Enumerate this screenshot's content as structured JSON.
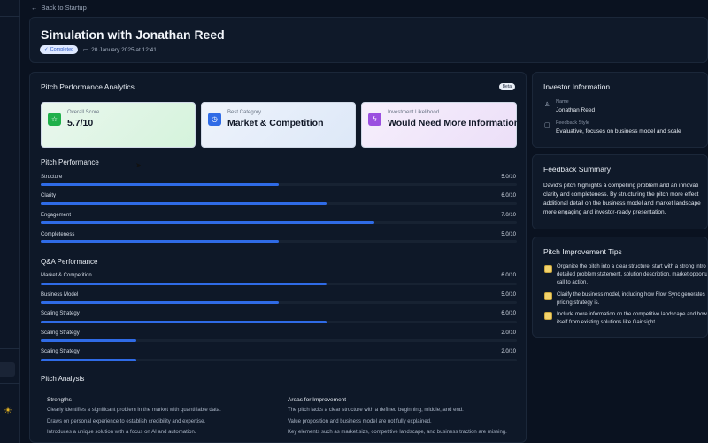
{
  "nav": {
    "back_label": "Back to Startup"
  },
  "header": {
    "title": "Simulation with Jonathan Reed",
    "status": "Completed",
    "date": "20 January 2025 at 12:41"
  },
  "analytics": {
    "title": "Pitch Performance Analytics",
    "badge": "Beta",
    "stats": [
      {
        "label": "Overall Score",
        "value": "5.7/10",
        "icon": "star-icon",
        "color": "#1fb04a"
      },
      {
        "label": "Best Category",
        "value": "Market & Competition",
        "icon": "clock-icon",
        "color": "#2f6be6"
      },
      {
        "label": "Investment Likelihood",
        "value": "Would Need More Information",
        "icon": "bolt-icon",
        "color": "#9b4fe0"
      }
    ],
    "pitch_performance": {
      "title": "Pitch Performance",
      "items": [
        {
          "label": "Structure",
          "score": "5.0/10",
          "value": 5.0
        },
        {
          "label": "Clarity",
          "score": "6.0/10",
          "value": 6.0
        },
        {
          "label": "Engagement",
          "score": "7.0/10",
          "value": 7.0
        },
        {
          "label": "Completeness",
          "score": "5.0/10",
          "value": 5.0
        }
      ]
    },
    "qa_performance": {
      "title": "Q&A Performance",
      "items": [
        {
          "label": "Market & Competition",
          "score": "6.0/10",
          "value": 6.0
        },
        {
          "label": "Business Model",
          "score": "5.0/10",
          "value": 5.0
        },
        {
          "label": "Scaling Strategy",
          "score": "6.0/10",
          "value": 6.0
        },
        {
          "label": "Scaling Strategy",
          "score": "2.0/10",
          "value": 2.0
        },
        {
          "label": "Scaling Strategy",
          "score": "2.0/10",
          "value": 2.0
        }
      ]
    },
    "analysis": {
      "title": "Pitch Analysis",
      "strengths_title": "Strengths",
      "strengths": [
        "Clearly identifies a significant problem in the market with quantifiable data.",
        "Draws on personal experience to establish credibility and expertise.",
        "Introduces a unique solution with a focus on AI and automation."
      ],
      "improvement_title": "Areas for Improvement",
      "improvements": [
        "The pitch lacks a clear structure with a defined beginning, middle, and end.",
        "Value proposition and business model are not fully explained.",
        "Key elements such as market size, competitive landscape, and business traction are missing."
      ]
    }
  },
  "investor": {
    "title": "Investor Information",
    "name_label": "Name",
    "name": "Jonathan Reed",
    "style_label": "Feedback Style",
    "style": "Evaluative, focuses on business model and scale"
  },
  "feedback": {
    "title": "Feedback Summary",
    "text": "David's pitch highlights a compelling problem and an innovati clarity and completeness. By structuring the pitch more effect additional detail on the business model and market landscape more engaging and investor-ready presentation."
  },
  "tips": {
    "title": "Pitch Improvement Tips",
    "items": [
      "Organize the pitch into a clear structure: start with a strong intro detailed problem statement, solution description, market opportu call to action.",
      "Clarify the business model, including how Flow Sync generates pricing strategy is.",
      "Include more information on the competitive landscape and how itself from existing solutions like Gainsight."
    ]
  }
}
